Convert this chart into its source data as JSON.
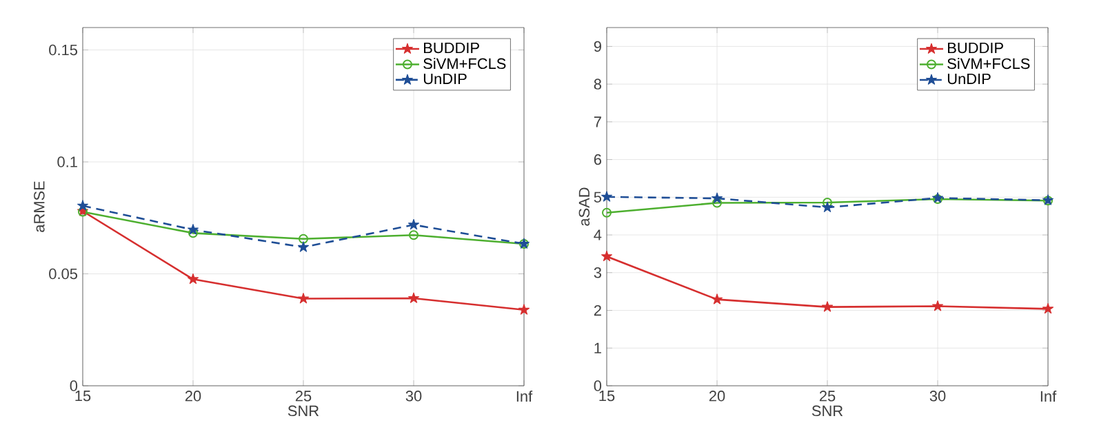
{
  "chart_data": [
    {
      "type": "line",
      "xlabel": "SNR",
      "ylabel": "aRMSE",
      "categories": [
        "15",
        "20",
        "25",
        "30",
        "Inf"
      ],
      "ylim": [
        0,
        0.16
      ],
      "yticks": [
        0,
        0.05,
        0.1,
        0.15
      ],
      "grid": true,
      "legend": "top right",
      "series": [
        {
          "name": "BUDDIP",
          "color": "#d62f2f",
          "marker": "star",
          "line_style": "solid",
          "values": [
            0.078,
            0.0476,
            0.0389,
            0.0391,
            0.0339
          ]
        },
        {
          "name": "SiVM+FCLS",
          "color": "#4daf2f",
          "marker": "circle",
          "line_style": "solid",
          "values": [
            0.0777,
            0.0682,
            0.0656,
            0.0673,
            0.0634
          ]
        },
        {
          "name": "UnDIP",
          "color": "#1f4e96",
          "marker": "star",
          "line_style": "dashed",
          "values": [
            0.0804,
            0.0697,
            0.0619,
            0.0719,
            0.0634
          ]
        }
      ]
    },
    {
      "type": "line",
      "xlabel": "SNR",
      "ylabel": "aSAD",
      "categories": [
        "15",
        "20",
        "25",
        "30",
        "Inf"
      ],
      "ylim": [
        0,
        9.5
      ],
      "yticks": [
        0,
        1,
        2,
        3,
        4,
        5,
        6,
        7,
        8,
        9
      ],
      "grid": true,
      "legend": "top right",
      "series": [
        {
          "name": "BUDDIP",
          "color": "#d62f2f",
          "marker": "star",
          "line_style": "solid",
          "values": [
            3.43,
            2.29,
            2.09,
            2.11,
            2.04
          ]
        },
        {
          "name": "SiVM+FCLS",
          "color": "#4daf2f",
          "marker": "circle",
          "line_style": "solid",
          "values": [
            4.59,
            4.85,
            4.86,
            4.95,
            4.91
          ]
        },
        {
          "name": "UnDIP",
          "color": "#1f4e96",
          "marker": "star",
          "line_style": "dashed",
          "values": [
            5.01,
            4.97,
            4.73,
            4.98,
            4.92
          ]
        }
      ]
    }
  ]
}
